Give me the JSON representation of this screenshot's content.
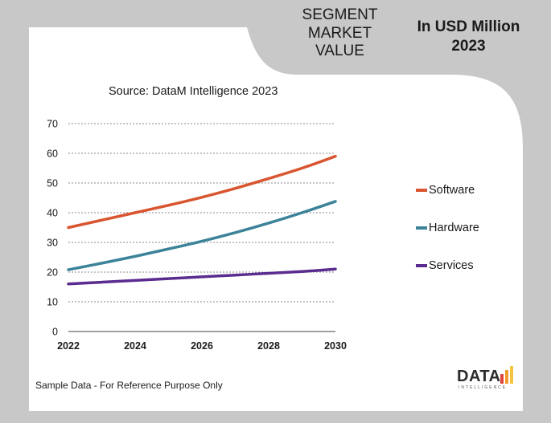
{
  "header": {
    "segment_lines": [
      "SEGMENT",
      "MARKET",
      "VALUE"
    ],
    "unit_lines": [
      "In USD Million",
      "2023"
    ]
  },
  "source_text": "Source: DataM Intelligence  2023",
  "footnote": "Sample Data - For Reference Purpose Only",
  "logo": {
    "word": "DATA",
    "sub": "INTELLIGENCE"
  },
  "chart_data": {
    "type": "line",
    "title": "",
    "xlabel": "",
    "ylabel": "",
    "x": [
      2022,
      2023,
      2024,
      2025,
      2026,
      2027,
      2028,
      2029,
      2030
    ],
    "xticks": [
      "2022",
      "2024",
      "2026",
      "2028",
      "2030"
    ],
    "xlim": [
      2022,
      2030
    ],
    "ylim": [
      0,
      70
    ],
    "yticks": [
      0,
      10,
      20,
      30,
      40,
      50,
      60,
      70
    ],
    "grid": true,
    "legend_position": "right",
    "series": [
      {
        "name": "Software",
        "color": "#d9552f",
        "values": [
          35,
          37.5,
          40,
          42.5,
          45.2,
          48.2,
          51.5,
          55,
          59
        ]
      },
      {
        "name": "Hardware",
        "color": "#3c8399",
        "values": [
          20.8,
          23,
          25.3,
          27.8,
          30.4,
          33.3,
          36.5,
          40,
          43.8
        ]
      },
      {
        "name": "Services",
        "color": "#5b2c8f",
        "values": [
          16,
          16.6,
          17.2,
          17.8,
          18.4,
          19,
          19.6,
          20.2,
          21
        ]
      }
    ]
  }
}
